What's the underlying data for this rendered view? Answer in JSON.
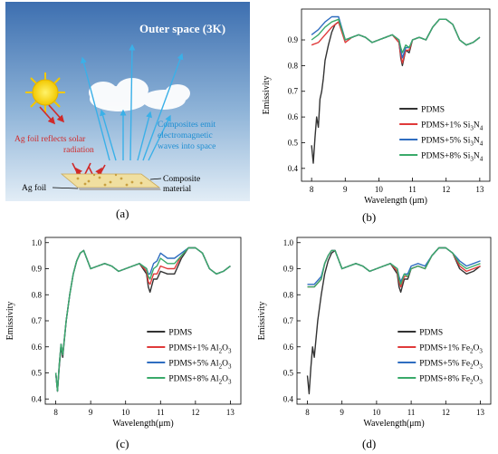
{
  "illustration": {
    "title": "Outer space (3K)",
    "label_ag_reflect_1": "Ag foil reflects solar",
    "label_ag_reflect_2": "radiation",
    "label_emit_1": "Composites emit",
    "label_emit_2": "electromagnetic",
    "label_emit_3": "waves into space",
    "label_ag_foil": "Ag foil",
    "label_composite_1": "Composite",
    "label_composite_2": "material",
    "colors": {
      "sky_top": "#3d6fb0",
      "sky_bottom": "#d9e7f3",
      "reflect_arrow": "#d02a2a",
      "emit_arrow": "#3ab0e8",
      "sun": "#f4d800"
    }
  },
  "captions": {
    "a": "(a)",
    "b": "(b)",
    "c": "(c)",
    "d": "(d)"
  },
  "chart_data": [
    {
      "panel": "b",
      "type": "line",
      "xlabel": "Wavelength (μm)",
      "ylabel": "Emissivity",
      "xlim": [
        7.7,
        13.3
      ],
      "ylim": [
        0.35,
        1.02
      ],
      "xticks": [
        8,
        9,
        10,
        11,
        12,
        13
      ],
      "yticks": [
        0.4,
        0.5,
        0.6,
        0.7,
        0.8,
        0.9
      ],
      "legend_position": "bottom-right",
      "series": [
        {
          "name": "PDMS",
          "sub": "",
          "name_tail": "",
          "color": "#333333",
          "x": [
            8.0,
            8.05,
            8.1,
            8.15,
            8.2,
            8.25,
            8.3,
            8.35,
            8.4,
            8.5,
            8.6,
            8.7,
            8.8,
            9.0,
            9.2,
            9.4,
            9.6,
            9.8,
            10.0,
            10.2,
            10.4,
            10.6,
            10.65,
            10.7,
            10.8,
            10.9,
            11.0,
            11.2,
            11.4,
            11.6,
            11.8,
            12.0,
            12.2,
            12.4,
            12.6,
            12.8,
            13.0
          ],
          "y": [
            0.49,
            0.42,
            0.52,
            0.6,
            0.56,
            0.67,
            0.7,
            0.75,
            0.82,
            0.88,
            0.93,
            0.96,
            0.97,
            0.9,
            0.91,
            0.92,
            0.91,
            0.89,
            0.9,
            0.91,
            0.92,
            0.89,
            0.83,
            0.8,
            0.86,
            0.85,
            0.9,
            0.91,
            0.9,
            0.95,
            0.98,
            0.98,
            0.96,
            0.9,
            0.88,
            0.89,
            0.91
          ]
        },
        {
          "name": "PDMS+1% Si",
          "sub": "3",
          "name_tail": "N",
          "sub2": "4",
          "color": "#e03a3a",
          "x": [
            8.0,
            8.2,
            8.4,
            8.6,
            8.8,
            9.0,
            9.2,
            9.4,
            9.6,
            9.8,
            10.0,
            10.2,
            10.4,
            10.6,
            10.65,
            10.7,
            10.8,
            10.9,
            11.0,
            11.2,
            11.4,
            11.6,
            11.8,
            12.0,
            12.2,
            12.4,
            12.6,
            12.8,
            13.0
          ],
          "y": [
            0.88,
            0.89,
            0.92,
            0.95,
            0.97,
            0.89,
            0.91,
            0.92,
            0.91,
            0.89,
            0.9,
            0.91,
            0.92,
            0.89,
            0.84,
            0.81,
            0.86,
            0.86,
            0.9,
            0.91,
            0.9,
            0.95,
            0.98,
            0.98,
            0.96,
            0.9,
            0.88,
            0.89,
            0.91
          ]
        },
        {
          "name": "PDMS+5% Si",
          "sub": "3",
          "name_tail": "N",
          "sub2": "4",
          "color": "#2f6dc0",
          "x": [
            8.0,
            8.2,
            8.4,
            8.6,
            8.8,
            9.0,
            9.2,
            9.4,
            9.6,
            9.8,
            10.0,
            10.2,
            10.4,
            10.6,
            10.65,
            10.7,
            10.8,
            10.9,
            11.0,
            11.2,
            11.4,
            11.6,
            11.8,
            12.0,
            12.2,
            12.4,
            12.6,
            12.8,
            13.0
          ],
          "y": [
            0.92,
            0.94,
            0.97,
            0.99,
            0.99,
            0.9,
            0.91,
            0.92,
            0.91,
            0.89,
            0.9,
            0.91,
            0.92,
            0.9,
            0.86,
            0.83,
            0.87,
            0.87,
            0.9,
            0.91,
            0.9,
            0.95,
            0.98,
            0.98,
            0.96,
            0.9,
            0.88,
            0.89,
            0.91
          ]
        },
        {
          "name": "PDMS+8% Si",
          "sub": "3",
          "name_tail": "N",
          "sub2": "4",
          "color": "#3aaa6a",
          "x": [
            8.0,
            8.2,
            8.4,
            8.6,
            8.8,
            9.0,
            9.2,
            9.4,
            9.6,
            9.8,
            10.0,
            10.2,
            10.4,
            10.6,
            10.65,
            10.7,
            10.8,
            10.9,
            11.0,
            11.2,
            11.4,
            11.6,
            11.8,
            12.0,
            12.2,
            12.4,
            12.6,
            12.8,
            13.0
          ],
          "y": [
            0.9,
            0.92,
            0.95,
            0.97,
            0.98,
            0.9,
            0.91,
            0.92,
            0.91,
            0.89,
            0.9,
            0.91,
            0.92,
            0.9,
            0.87,
            0.85,
            0.88,
            0.87,
            0.9,
            0.91,
            0.9,
            0.95,
            0.98,
            0.98,
            0.96,
            0.9,
            0.88,
            0.89,
            0.91
          ]
        }
      ]
    },
    {
      "panel": "c",
      "type": "line",
      "xlabel": "Wavelength(μm)",
      "ylabel": "Emissivity",
      "xlim": [
        7.7,
        13.3
      ],
      "ylim": [
        0.38,
        1.02
      ],
      "xticks": [
        8,
        9,
        10,
        11,
        12,
        13
      ],
      "yticks": [
        0.4,
        0.5,
        0.6,
        0.7,
        0.8,
        0.9,
        1.0
      ],
      "legend_position": "bottom-right",
      "series": [
        {
          "name": "PDMS",
          "sub": "",
          "name_tail": "",
          "color": "#333333",
          "x": [
            8.0,
            8.05,
            8.1,
            8.15,
            8.2,
            8.3,
            8.4,
            8.5,
            8.6,
            8.7,
            8.8,
            9.0,
            9.2,
            9.4,
            9.6,
            9.8,
            10.0,
            10.2,
            10.4,
            10.6,
            10.65,
            10.7,
            10.8,
            10.9,
            11.0,
            11.2,
            11.4,
            11.6,
            11.8,
            12.0,
            12.2,
            12.4,
            12.6,
            12.8,
            13.0
          ],
          "y": [
            0.5,
            0.43,
            0.52,
            0.6,
            0.56,
            0.7,
            0.8,
            0.88,
            0.93,
            0.96,
            0.97,
            0.9,
            0.91,
            0.92,
            0.91,
            0.89,
            0.9,
            0.91,
            0.92,
            0.88,
            0.83,
            0.81,
            0.86,
            0.86,
            0.89,
            0.88,
            0.88,
            0.94,
            0.98,
            0.98,
            0.96,
            0.9,
            0.88,
            0.89,
            0.91
          ]
        },
        {
          "name": "PDMS+1% Al",
          "sub": "2",
          "name_tail": "O",
          "sub2": "3",
          "color": "#e03a3a",
          "x": [
            8.0,
            8.05,
            8.1,
            8.15,
            8.2,
            8.3,
            8.4,
            8.5,
            8.6,
            8.7,
            8.8,
            9.0,
            9.2,
            9.4,
            9.6,
            9.8,
            10.0,
            10.2,
            10.4,
            10.6,
            10.65,
            10.7,
            10.8,
            10.9,
            11.0,
            11.2,
            11.4,
            11.6,
            11.8,
            12.0,
            12.2,
            12.4,
            12.6,
            12.8,
            13.0
          ],
          "y": [
            0.5,
            0.43,
            0.53,
            0.61,
            0.57,
            0.7,
            0.8,
            0.88,
            0.93,
            0.96,
            0.97,
            0.9,
            0.91,
            0.92,
            0.91,
            0.89,
            0.9,
            0.91,
            0.92,
            0.89,
            0.85,
            0.84,
            0.88,
            0.88,
            0.91,
            0.9,
            0.9,
            0.95,
            0.98,
            0.98,
            0.96,
            0.9,
            0.88,
            0.89,
            0.91
          ]
        },
        {
          "name": "PDMS+5% Al",
          "sub": "2",
          "name_tail": "O",
          "sub2": "3",
          "color": "#2f6dc0",
          "x": [
            8.0,
            8.05,
            8.1,
            8.15,
            8.2,
            8.3,
            8.4,
            8.5,
            8.6,
            8.7,
            8.8,
            9.0,
            9.2,
            9.4,
            9.6,
            9.8,
            10.0,
            10.2,
            10.4,
            10.6,
            10.65,
            10.7,
            10.8,
            10.9,
            11.0,
            11.2,
            11.4,
            11.6,
            11.8,
            12.0,
            12.2,
            12.4,
            12.6,
            12.8,
            13.0
          ],
          "y": [
            0.5,
            0.43,
            0.53,
            0.61,
            0.57,
            0.7,
            0.8,
            0.88,
            0.93,
            0.96,
            0.97,
            0.9,
            0.91,
            0.92,
            0.91,
            0.89,
            0.9,
            0.91,
            0.92,
            0.9,
            0.88,
            0.88,
            0.92,
            0.93,
            0.96,
            0.94,
            0.94,
            0.96,
            0.98,
            0.98,
            0.96,
            0.9,
            0.88,
            0.89,
            0.91
          ]
        },
        {
          "name": "PDMS+8% Al",
          "sub": "2",
          "name_tail": "O",
          "sub2": "3",
          "color": "#3aaa6a",
          "x": [
            8.0,
            8.05,
            8.1,
            8.15,
            8.2,
            8.3,
            8.4,
            8.5,
            8.6,
            8.7,
            8.8,
            9.0,
            9.2,
            9.4,
            9.6,
            9.8,
            10.0,
            10.2,
            10.4,
            10.6,
            10.65,
            10.7,
            10.8,
            10.9,
            11.0,
            11.2,
            11.4,
            11.6,
            11.8,
            12.0,
            12.2,
            12.4,
            12.6,
            12.8,
            13.0
          ],
          "y": [
            0.5,
            0.43,
            0.53,
            0.61,
            0.57,
            0.7,
            0.8,
            0.88,
            0.93,
            0.96,
            0.97,
            0.9,
            0.91,
            0.92,
            0.91,
            0.89,
            0.9,
            0.91,
            0.92,
            0.9,
            0.87,
            0.86,
            0.9,
            0.91,
            0.94,
            0.92,
            0.92,
            0.95,
            0.98,
            0.98,
            0.96,
            0.9,
            0.88,
            0.89,
            0.91
          ]
        }
      ]
    },
    {
      "panel": "d",
      "type": "line",
      "xlabel": "Wavelength(μm)",
      "ylabel": "Emissivity",
      "xlim": [
        7.7,
        13.3
      ],
      "ylim": [
        0.38,
        1.02
      ],
      "xticks": [
        8,
        9,
        10,
        11,
        12,
        13
      ],
      "yticks": [
        0.4,
        0.5,
        0.6,
        0.7,
        0.8,
        0.9,
        1.0
      ],
      "legend_position": "bottom-right",
      "series": [
        {
          "name": "PDMS",
          "sub": "",
          "name_tail": "",
          "color": "#333333",
          "x": [
            8.0,
            8.05,
            8.1,
            8.15,
            8.2,
            8.3,
            8.4,
            8.5,
            8.6,
            8.7,
            8.8,
            9.0,
            9.2,
            9.4,
            9.6,
            9.8,
            10.0,
            10.2,
            10.4,
            10.6,
            10.65,
            10.7,
            10.8,
            10.9,
            11.0,
            11.2,
            11.4,
            11.6,
            11.8,
            12.0,
            12.2,
            12.4,
            12.6,
            12.8,
            13.0
          ],
          "y": [
            0.49,
            0.42,
            0.52,
            0.6,
            0.56,
            0.7,
            0.8,
            0.88,
            0.93,
            0.96,
            0.97,
            0.9,
            0.91,
            0.92,
            0.91,
            0.89,
            0.9,
            0.91,
            0.92,
            0.88,
            0.83,
            0.81,
            0.86,
            0.86,
            0.9,
            0.91,
            0.9,
            0.95,
            0.98,
            0.98,
            0.96,
            0.9,
            0.88,
            0.89,
            0.91
          ]
        },
        {
          "name": "PDMS+1% Fe",
          "sub": "2",
          "name_tail": "O",
          "sub2": "3",
          "color": "#e03a3a",
          "x": [
            8.0,
            8.2,
            8.4,
            8.5,
            8.6,
            8.7,
            8.8,
            9.0,
            9.2,
            9.4,
            9.6,
            9.8,
            10.0,
            10.2,
            10.4,
            10.6,
            10.65,
            10.7,
            10.8,
            10.9,
            11.0,
            11.2,
            11.4,
            11.6,
            11.8,
            12.0,
            12.2,
            12.4,
            12.6,
            12.8,
            13.0
          ],
          "y": [
            0.83,
            0.83,
            0.86,
            0.92,
            0.95,
            0.97,
            0.97,
            0.9,
            0.91,
            0.92,
            0.91,
            0.89,
            0.9,
            0.91,
            0.92,
            0.89,
            0.85,
            0.83,
            0.87,
            0.87,
            0.9,
            0.91,
            0.9,
            0.95,
            0.98,
            0.98,
            0.96,
            0.91,
            0.89,
            0.9,
            0.91
          ]
        },
        {
          "name": "PDMS+5% Fe",
          "sub": "2",
          "name_tail": "O",
          "sub2": "3",
          "color": "#2f6dc0",
          "x": [
            8.0,
            8.2,
            8.4,
            8.5,
            8.6,
            8.7,
            8.8,
            9.0,
            9.2,
            9.4,
            9.6,
            9.8,
            10.0,
            10.2,
            10.4,
            10.6,
            10.65,
            10.7,
            10.8,
            10.9,
            11.0,
            11.2,
            11.4,
            11.6,
            11.8,
            12.0,
            12.2,
            12.4,
            12.6,
            12.8,
            13.0
          ],
          "y": [
            0.84,
            0.84,
            0.87,
            0.92,
            0.95,
            0.97,
            0.97,
            0.9,
            0.91,
            0.92,
            0.91,
            0.89,
            0.9,
            0.91,
            0.92,
            0.9,
            0.87,
            0.85,
            0.88,
            0.88,
            0.91,
            0.92,
            0.91,
            0.95,
            0.98,
            0.98,
            0.96,
            0.93,
            0.91,
            0.92,
            0.93
          ]
        },
        {
          "name": "PDMS+8% Fe",
          "sub": "2",
          "name_tail": "O",
          "sub2": "3",
          "color": "#3aaa6a",
          "x": [
            8.0,
            8.2,
            8.4,
            8.5,
            8.6,
            8.7,
            8.8,
            9.0,
            9.2,
            9.4,
            9.6,
            9.8,
            10.0,
            10.2,
            10.4,
            10.6,
            10.65,
            10.7,
            10.8,
            10.9,
            11.0,
            11.2,
            11.4,
            11.6,
            11.8,
            12.0,
            12.2,
            12.4,
            12.6,
            12.8,
            13.0
          ],
          "y": [
            0.83,
            0.83,
            0.86,
            0.92,
            0.95,
            0.97,
            0.97,
            0.9,
            0.91,
            0.92,
            0.91,
            0.89,
            0.9,
            0.91,
            0.92,
            0.9,
            0.86,
            0.84,
            0.88,
            0.87,
            0.9,
            0.91,
            0.9,
            0.95,
            0.98,
            0.98,
            0.96,
            0.92,
            0.9,
            0.91,
            0.92
          ]
        }
      ]
    }
  ]
}
